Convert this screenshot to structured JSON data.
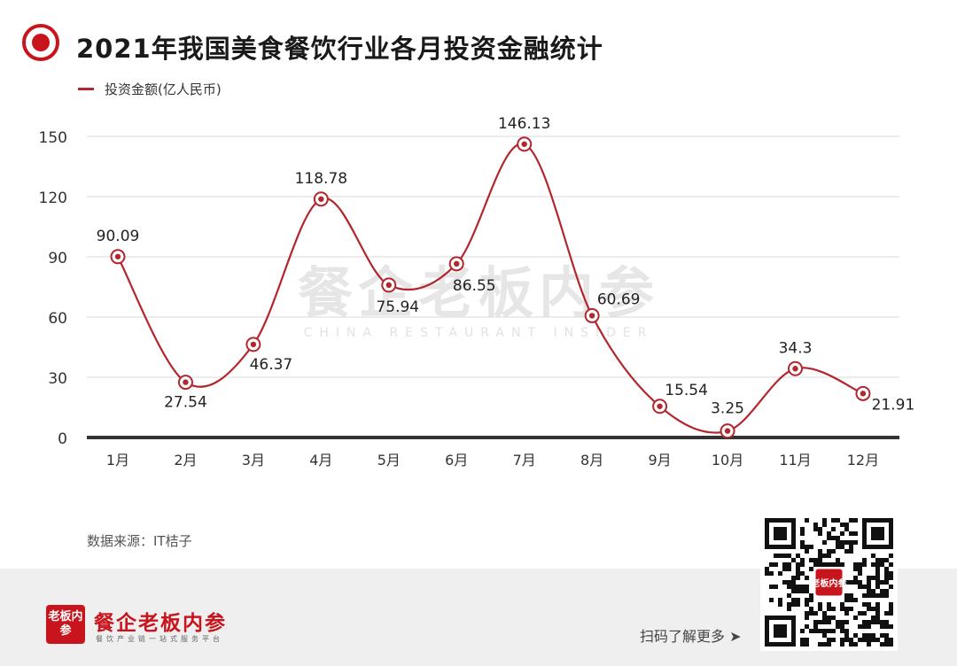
{
  "title": "2021年我国美食餐饮行业各月投资金融统计",
  "legend_label": "投资金额(亿人民币)",
  "source": "数据来源：IT桔子",
  "watermark": {
    "cn": "餐企老板内参",
    "en": "CHINA RESTAURANT INSIDER"
  },
  "brand": {
    "logo_text": "老板内参",
    "name": "餐企老板内参",
    "tagline": "餐饮产业链一站式服务平台"
  },
  "scan_text": "扫码了解更多",
  "scan_arrow": "➤",
  "qr_center_text": "老板内参",
  "colors": {
    "line": "#b3262d",
    "accent": "#c8151d"
  },
  "chart_data": {
    "type": "line",
    "title": "2021年我国美食餐饮行业各月投资金融统计",
    "categories": [
      "1月",
      "2月",
      "3月",
      "4月",
      "5月",
      "6月",
      "7月",
      "8月",
      "9月",
      "10月",
      "11月",
      "12月"
    ],
    "series": [
      {
        "name": "投资金额(亿人民币)",
        "values": [
          90.09,
          27.54,
          46.37,
          118.78,
          75.94,
          86.55,
          146.13,
          60.69,
          15.54,
          3.25,
          34.3,
          21.91
        ]
      }
    ],
    "yticks": [
      0,
      30,
      60,
      90,
      120,
      150
    ],
    "ylim": [
      0,
      150
    ],
    "smooth": true,
    "grid": true,
    "legend_position": "top-left"
  }
}
